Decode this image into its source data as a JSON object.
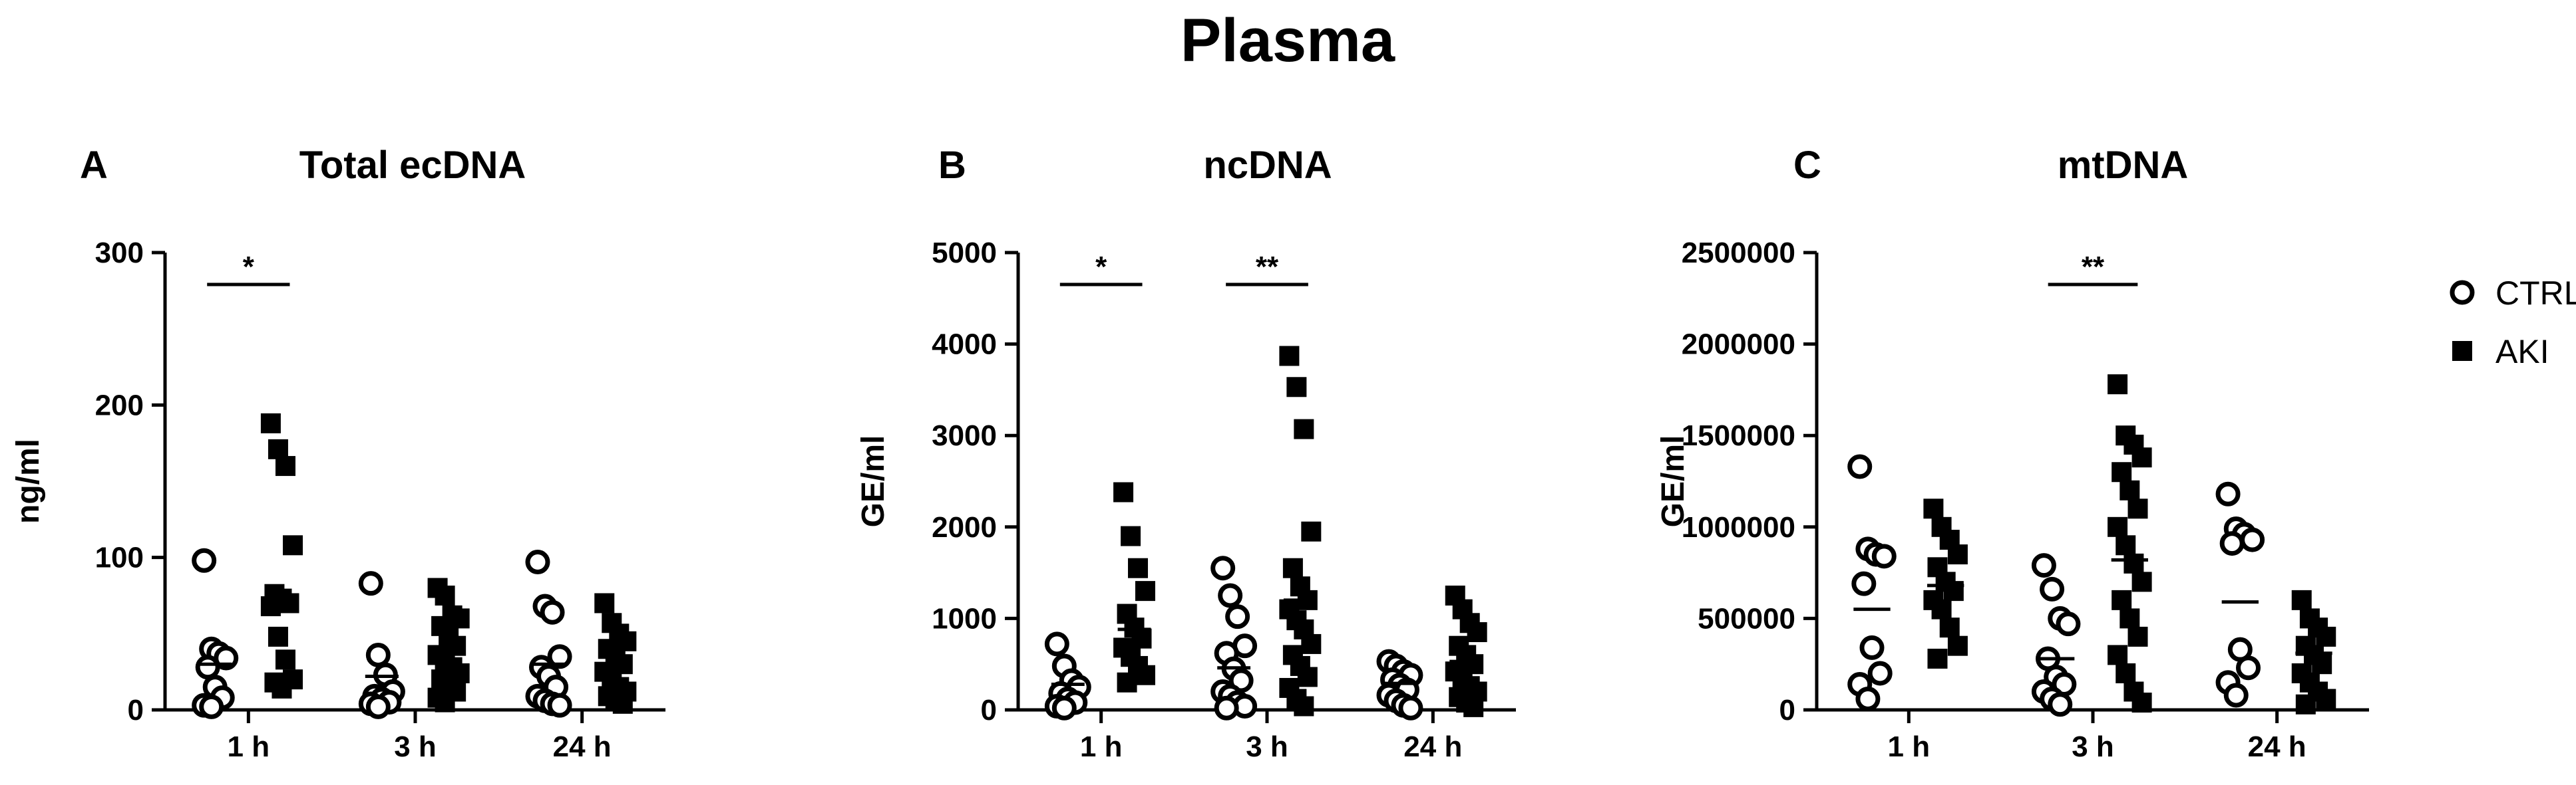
{
  "figure_title": "Plasma",
  "legend": [
    {
      "label": "CTRL",
      "marker": "open-circle"
    },
    {
      "label": "AKI",
      "marker": "filled-square"
    }
  ],
  "colors": {
    "ink": "#000000",
    "background": "#ffffff"
  },
  "chart_data": [
    {
      "type": "scatter",
      "panel": "A",
      "title": "Total ecDNA",
      "xlabel": "",
      "ylabel": "ng/ml",
      "ylim": [
        0,
        300
      ],
      "yticks": [
        0,
        100,
        200,
        300
      ],
      "ytick_labels": [
        "0",
        "100",
        "200",
        "300"
      ],
      "categories": [
        "1 h",
        "3 h",
        "24 h"
      ],
      "series": [
        {
          "name": "CTRL",
          "marker": "open-circle",
          "points": [
            [
              98,
              40,
              37,
              34,
              28,
              15,
              8,
              3,
              2
            ],
            [
              83,
              36,
              23,
              12,
              9,
              7,
              5,
              4,
              2
            ],
            [
              97,
              68,
              64,
              35,
              28,
              22,
              15,
              9,
              6,
              4,
              3
            ]
          ],
          "means": [
            30,
            22,
            30
          ]
        },
        {
          "name": "AKI",
          "marker": "filled-square",
          "points": [
            [
              188,
              171,
              160,
              108,
              76,
              73,
              70,
              68,
              48,
              33,
              20,
              18,
              14
            ],
            [
              80,
              75,
              62,
              60,
              55,
              48,
              42,
              36,
              32,
              28,
              24,
              20,
              15,
              12,
              8,
              5
            ],
            [
              70,
              57,
              50,
              45,
              40,
              35,
              30,
              25,
              20,
              15,
              12,
              9,
              6,
              4
            ]
          ],
          "means": [
            73,
            38,
            27
          ]
        }
      ],
      "significance": [
        {
          "category": "1 h",
          "label": "*"
        }
      ]
    },
    {
      "type": "scatter",
      "panel": "B",
      "title": "ncDNA",
      "xlabel": "",
      "ylabel": "GE/ml",
      "ylim": [
        0,
        5000
      ],
      "yticks": [
        0,
        1000,
        2000,
        3000,
        4000,
        5000
      ],
      "ytick_labels": [
        "0",
        "1000",
        "2000",
        "3000",
        "4000",
        "5000"
      ],
      "categories": [
        "1 h",
        "3 h",
        "24 h"
      ],
      "series": [
        {
          "name": "CTRL",
          "marker": "open-circle",
          "points": [
            [
              720,
              480,
              320,
              250,
              180,
              120,
              80,
              40,
              20
            ],
            [
              1550,
              1250,
              1020,
              700,
              620,
              450,
              320,
              200,
              150,
              80,
              40,
              20
            ],
            [
              530,
              480,
              420,
              380,
              330,
              270,
              220,
              160,
              100,
              50,
              20
            ]
          ],
          "means": [
            280,
            460,
            290
          ]
        },
        {
          "name": "AKI",
          "marker": "filled-square",
          "points": [
            [
              2380,
              1900,
              1550,
              1300,
              1050,
              900,
              780,
              680,
              580,
              480,
              380,
              300
            ],
            [
              3870,
              3530,
              3070,
              1950,
              1550,
              1350,
              1200,
              1100,
              980,
              880,
              720,
              600,
              480,
              360,
              240,
              120,
              40
            ],
            [
              1250,
              1100,
              950,
              850,
              700,
              600,
              500,
              420,
              340,
              260,
              200,
              140,
              80,
              30
            ]
          ],
          "means": [
            880,
            1200,
            530
          ]
        }
      ],
      "significance": [
        {
          "category": "1 h",
          "label": "*"
        },
        {
          "category": "3 h",
          "label": "**"
        }
      ]
    },
    {
      "type": "scatter",
      "panel": "C",
      "title": "mtDNA",
      "xlabel": "",
      "ylabel": "GE/ml",
      "ylim": [
        0,
        2500000
      ],
      "yticks": [
        0,
        500000,
        1000000,
        1500000,
        2000000,
        2500000
      ],
      "ytick_labels": [
        "0",
        "500000",
        "1000000",
        "1500000",
        "2000000",
        "2500000"
      ],
      "categories": [
        "1 h",
        "3 h",
        "24 h"
      ],
      "series": [
        {
          "name": "CTRL",
          "marker": "open-circle",
          "points": [
            [
              1330000,
              880000,
              850000,
              840000,
              690000,
              340000,
              200000,
              140000,
              60000
            ],
            [
              790000,
              660000,
              500000,
              470000,
              280000,
              180000,
              140000,
              100000,
              60000,
              30000
            ],
            [
              1180000,
              990000,
              960000,
              930000,
              910000,
              330000,
              230000,
              150000,
              80000
            ]
          ],
          "means": [
            550000,
            280000,
            590000
          ]
        },
        {
          "name": "AKI",
          "marker": "filled-square",
          "points": [
            [
              1100000,
              1000000,
              930000,
              850000,
              780000,
              700000,
              650000,
              600000,
              550000,
              450000,
              350000,
              280000
            ],
            [
              1780000,
              1500000,
              1450000,
              1380000,
              1300000,
              1200000,
              1100000,
              1000000,
              900000,
              800000,
              700000,
              600000,
              500000,
              400000,
              300000,
              200000,
              100000,
              40000
            ],
            [
              600000,
              500000,
              450000,
              400000,
              350000,
              300000,
              250000,
              200000,
              150000,
              100000,
              60000,
              30000
            ]
          ],
          "means": [
            680000,
            820000,
            310000
          ]
        }
      ],
      "significance": [
        {
          "category": "3 h",
          "label": "**"
        }
      ]
    }
  ]
}
